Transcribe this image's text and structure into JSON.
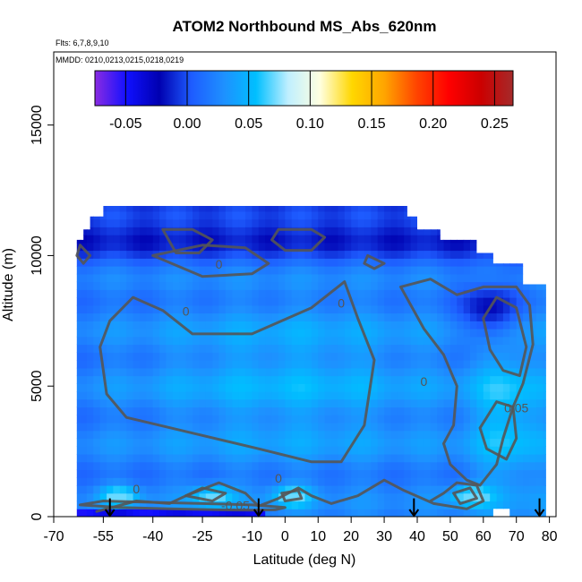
{
  "chart_data": {
    "type": "heatmap",
    "title": "ATOM2 Northbound MS_Abs_620nm",
    "subtitle_flights": "Flts: 6,7,8,9,10",
    "subtitle_dates": "MMDD: 0210,0213,0215,0218,0219",
    "xlabel": "Latitude (deg N)",
    "ylabel": "Altitude (m)",
    "xlim": [
      -70,
      82
    ],
    "ylim": [
      0,
      17800
    ],
    "x_ticks": [
      -70,
      -55,
      -40,
      -25,
      -10,
      0,
      10,
      20,
      30,
      40,
      50,
      60,
      70,
      80
    ],
    "x_tick_labels": [
      "-70",
      "-55",
      "-40",
      "-25",
      "-10",
      "0",
      "10",
      "20",
      "30",
      "40",
      "50",
      "60",
      "70",
      "80"
    ],
    "y_ticks": [
      0,
      5000,
      10000,
      15000
    ],
    "y_tick_labels": [
      "0",
      "5000",
      "10000",
      "15000"
    ],
    "colorbar": {
      "range": [
        -0.075,
        0.265
      ],
      "ticks": [
        -0.05,
        0.0,
        0.05,
        0.1,
        0.15,
        0.2,
        0.25
      ],
      "tick_labels": [
        "-0.05",
        "0.00",
        "0.05",
        "0.10",
        "0.15",
        "0.20",
        "0.25"
      ],
      "colors": [
        "#8a2be2",
        "#1010ff",
        "#0000b0",
        "#1e5cff",
        "#1e90ff",
        "#00bfff",
        "#bfefff",
        "#ffffe0",
        "#ffd700",
        "#ffa500",
        "#ff4500",
        "#ff0000",
        "#cc0000",
        "#a52a2a"
      ]
    },
    "field": {
      "lat_range": [
        -63,
        79
      ],
      "alt_range": [
        0,
        11900
      ],
      "typical_value": 0.03,
      "values_range": [
        -0.075,
        0.07
      ]
    },
    "contour_levels": [
      -0.05,
      0.0,
      0.05
    ],
    "contour_labels": [
      "0.05",
      "0",
      "0",
      "0",
      "0",
      "0",
      "0",
      "-0.05"
    ],
    "flight_markers_lat": [
      -53,
      -8,
      39,
      77
    ]
  }
}
